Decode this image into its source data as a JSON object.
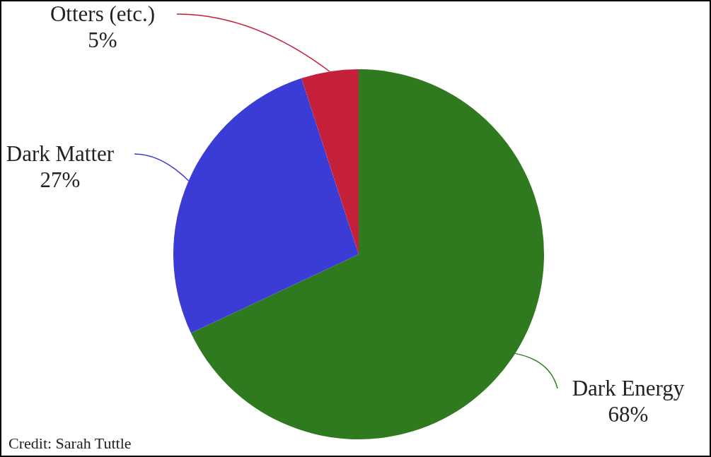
{
  "chart_data": {
    "type": "pie",
    "categories": [
      "Dark Energy",
      "Dark Matter",
      "Otters (etc.)"
    ],
    "values": [
      68,
      27,
      5
    ],
    "colors": [
      "#2f7a1f",
      "#3b3bd6",
      "#c52039"
    ],
    "value_labels": [
      "68%",
      "27%",
      "5%"
    ],
    "annotations": [
      "Credit: Sarah Tuttle"
    ]
  }
}
